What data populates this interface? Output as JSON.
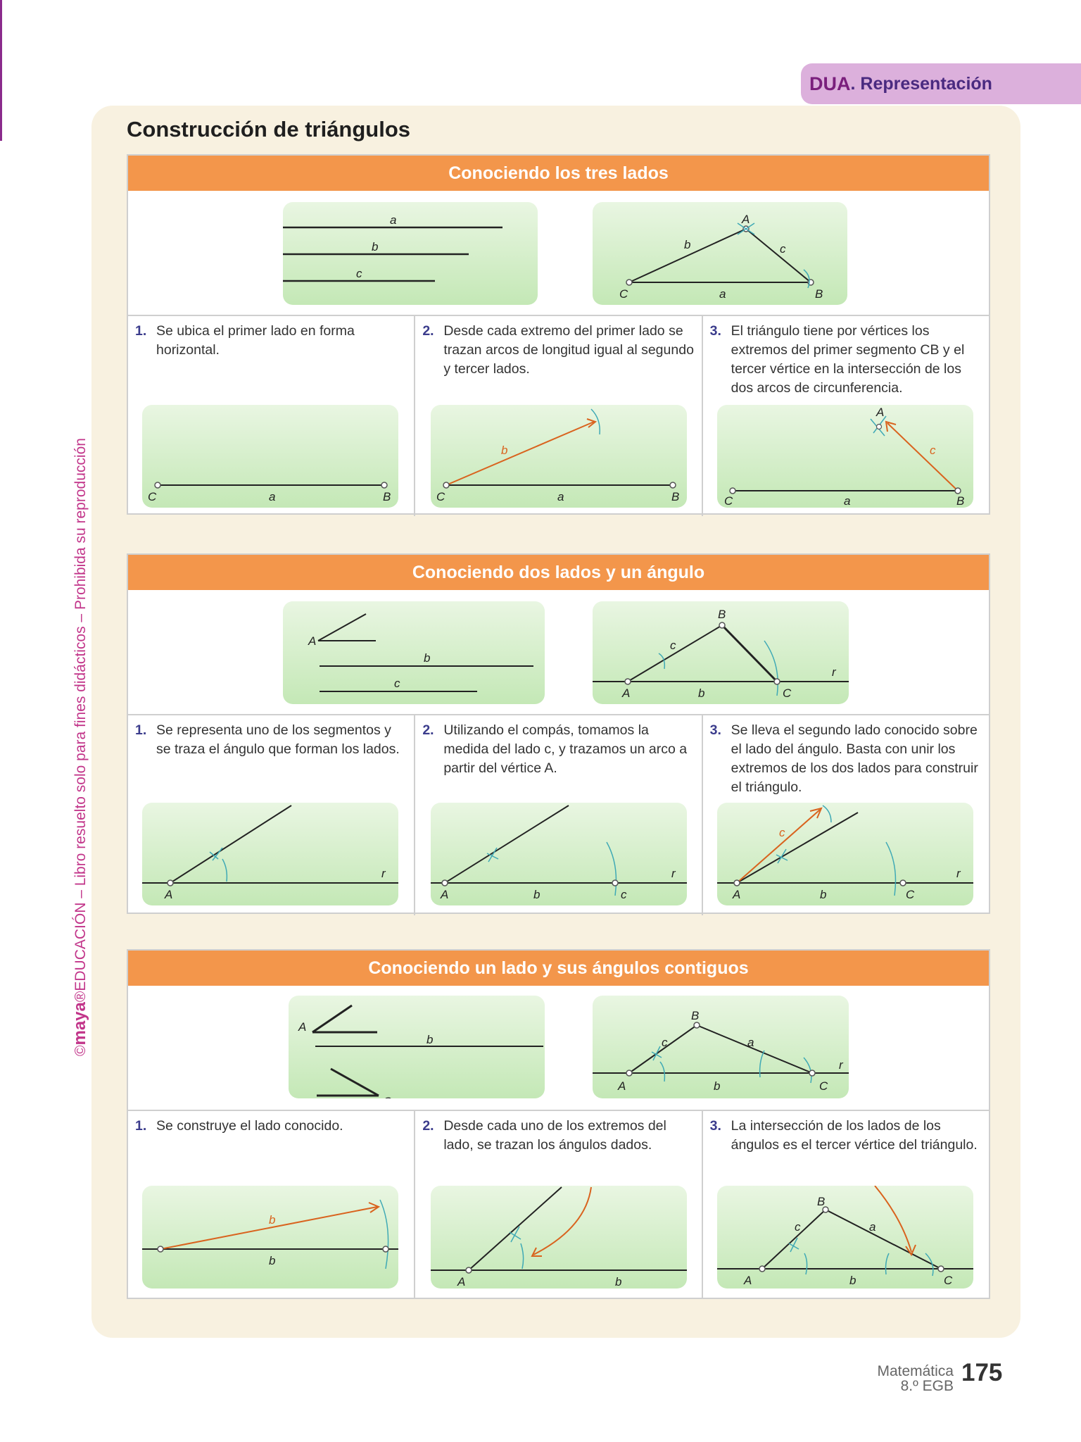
{
  "badge": {
    "main": "DUA",
    "sub": ". Representación"
  },
  "side_text": {
    "copy": "©",
    "brand": "maya",
    "reg": "®",
    "rest": "EDUCACIÓN – Libro resuelto solo para fines didácticos – Prohibida su reproducción"
  },
  "page_title": "Construcción de triángulos",
  "sections": [
    {
      "title": "Conociendo los tres lados",
      "steps": [
        {
          "num": "1.",
          "text": "Se ubica el primer lado en forma horizontal."
        },
        {
          "num": "2.",
          "text": "Desde cada extremo del primer lado se trazan arcos de longitud igual al segundo y tercer lados."
        },
        {
          "num": "3.",
          "text": "El triángulo tiene por vértices los extremos del primer segmento CB y el tercer vértice en la intersección de los dos arcos de circunferencia."
        }
      ]
    },
    {
      "title": "Conociendo dos lados y un ángulo",
      "steps": [
        {
          "num": "1.",
          "text": "Se representa uno de los segmentos y se traza el ángulo que forman los lados."
        },
        {
          "num": "2.",
          "text": "Utilizando el compás, tomamos la medida del lado c, y trazamos un arco a partir del vértice A."
        },
        {
          "num": "3.",
          "text": "Se lleva el segundo lado conocido sobre el lado del ángulo. Basta con unir los extremos de los dos lados para construir el triángulo."
        }
      ]
    },
    {
      "title": "Conociendo un lado y sus ángulos contiguos",
      "steps": [
        {
          "num": "1.",
          "text": "Se construye el lado conocido."
        },
        {
          "num": "2.",
          "text": "Desde cada uno de los extremos del lado, se trazan los ángulos dados."
        },
        {
          "num": "3.",
          "text": "La intersección de los lados de los ángulos es el tercer vértice del triángulo."
        }
      ]
    }
  ],
  "labels": {
    "a": "a",
    "b": "b",
    "c": "c",
    "A": "A",
    "B": "B",
    "C": "C",
    "r": "r"
  },
  "footer": {
    "subject": "Matemática",
    "grade": "8.º EGB",
    "page": "175"
  }
}
